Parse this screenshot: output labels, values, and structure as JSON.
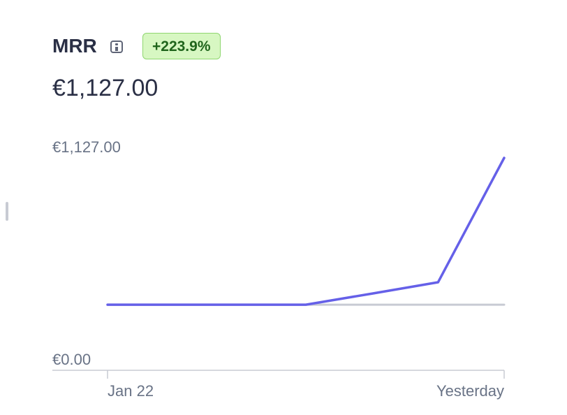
{
  "chart_data": {
    "type": "line",
    "title": "MRR",
    "change_label": "+223.9%",
    "total_label": "€1,127.00",
    "categories": [
      "Jan 22",
      null,
      null,
      null,
      null,
      null,
      "Yesterday"
    ],
    "series": [
      {
        "color": "#c8cbd3",
        "values": [
          348,
          348,
          348,
          348,
          348,
          348,
          348
        ]
      },
      {
        "color": "#6560e8",
        "values": [
          348,
          348,
          348,
          348,
          407,
          467,
          1127
        ]
      }
    ],
    "ylim": [
      0,
      1127
    ],
    "yticks": [
      {
        "value": 0,
        "label": "€0.00"
      },
      {
        "value": 1127,
        "label": "€1,127.00"
      }
    ],
    "grid": false
  }
}
